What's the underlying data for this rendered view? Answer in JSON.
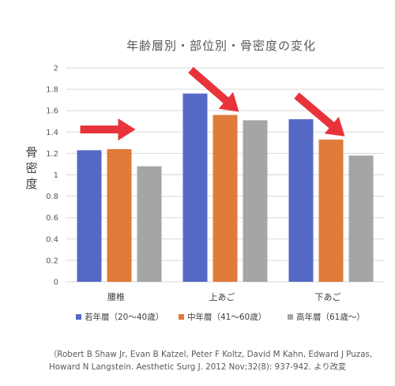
{
  "chart_data": {
    "type": "bar",
    "title": "年齢層別・部位別・骨密度の変化",
    "ylabel": "骨密度",
    "xlabel": "",
    "categories": [
      "腰椎",
      "上あご",
      "下あご"
    ],
    "series": [
      {
        "name": "若年層（20〜40歳）",
        "color": "#5469c4",
        "values": [
          1.23,
          1.76,
          1.52
        ]
      },
      {
        "name": "中年層（41〜60歳）",
        "color": "#e07b39",
        "values": [
          1.24,
          1.56,
          1.33
        ]
      },
      {
        "name": "高年層（61歳〜）",
        "color": "#a5a5a5",
        "values": [
          1.08,
          1.51,
          1.18
        ]
      }
    ],
    "ylim": [
      0,
      2
    ],
    "yticks": [
      "0",
      "0.2",
      "0.4",
      "0.6",
      "0.8",
      "1",
      "1.2",
      "1.4",
      "1.6",
      "1.8",
      "2"
    ],
    "grid": true,
    "legend": "bottom",
    "annotations": [
      {
        "type": "arrow",
        "direction": "right",
        "color": "#e8333a",
        "category": "腰椎"
      },
      {
        "type": "arrow",
        "direction": "down-right",
        "color": "#e8333a",
        "category": "上あご"
      },
      {
        "type": "arrow",
        "direction": "down-right",
        "color": "#e8333a",
        "category": "下あご"
      }
    ]
  },
  "citation": {
    "line1": "（Robert B Shaw Jr, Evan B Katzel, Peter F Koltz, David M Kahn, Edward J Puzas,",
    "line2": "Howard N Langstein. Aesthetic Surg J. 2012 Nov;32(8): 937-942. より改変"
  }
}
